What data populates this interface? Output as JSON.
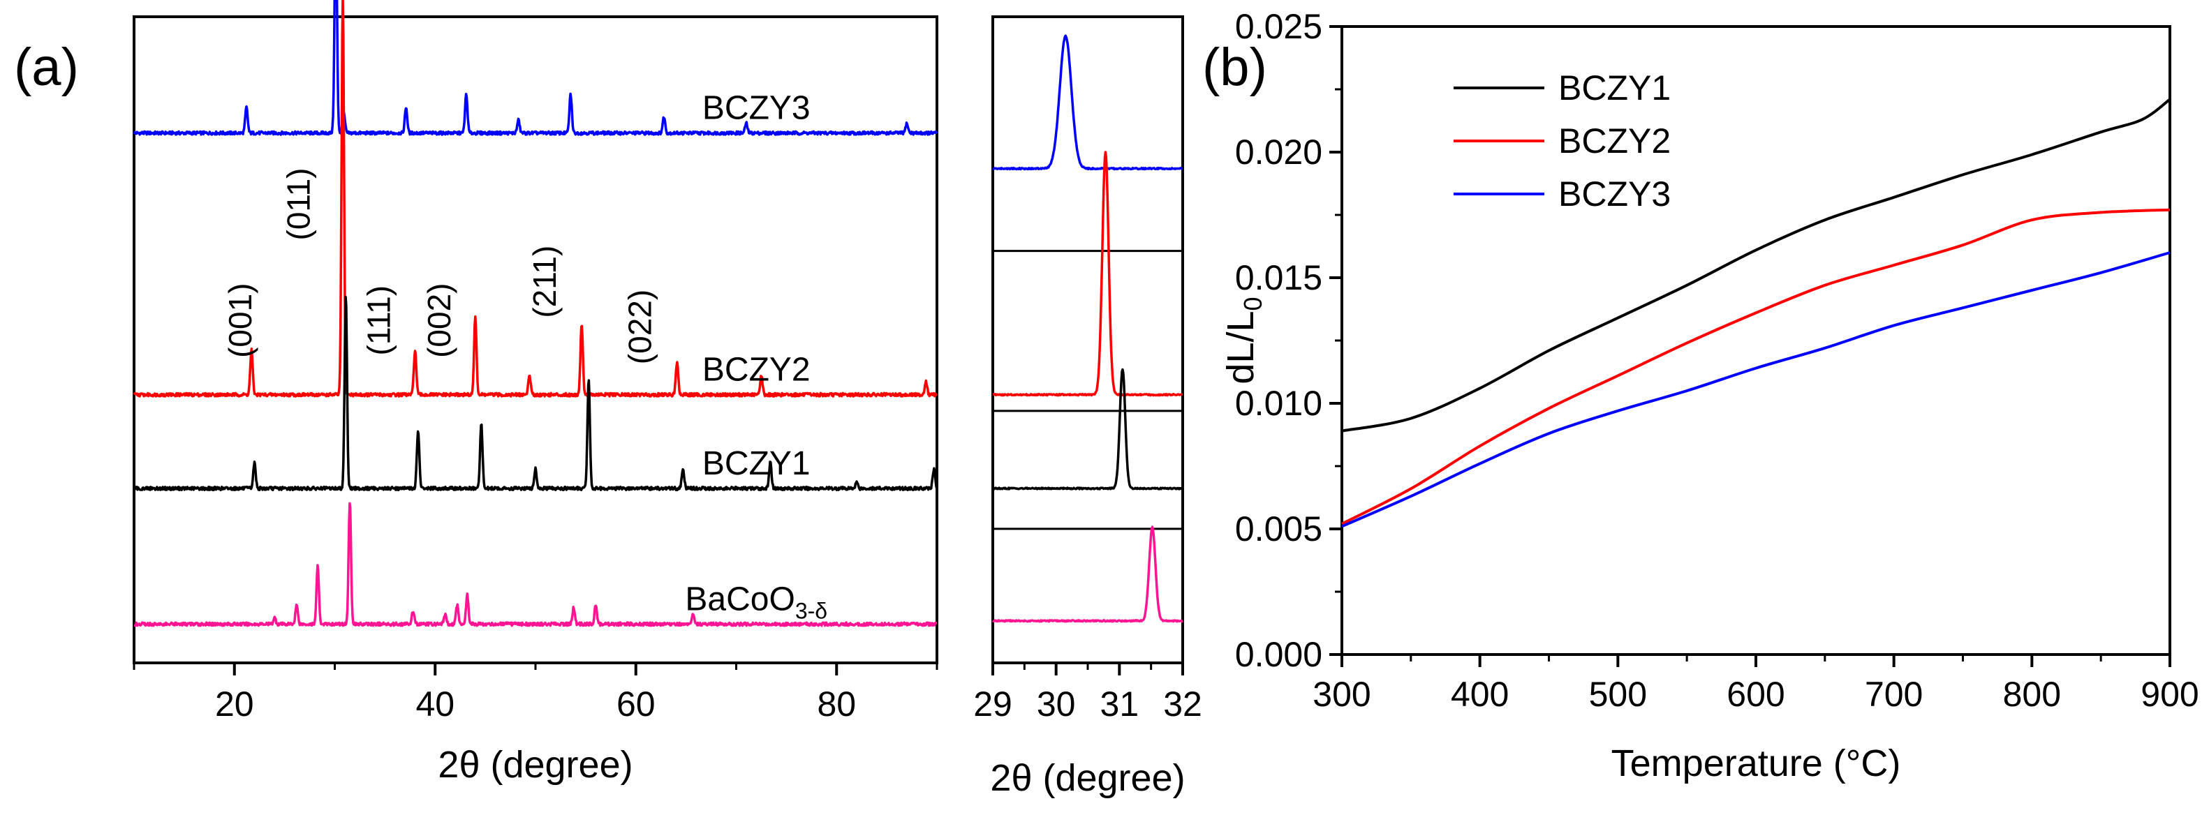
{
  "colors": {
    "BCZY1": "#000000",
    "BCZY2": "#ff0000",
    "BCZY3": "#0000ff",
    "BaCoO3": "#ff1493",
    "axis": "#000000"
  },
  "chart_data": [
    {
      "panel_label": "(a)",
      "type": "line",
      "title": "",
      "xlabel": "2θ (degree)",
      "ylabel": "",
      "xlim": [
        10,
        90
      ],
      "xticks": [
        20,
        40,
        60,
        80
      ],
      "xtick_labels": [
        "20",
        "40",
        "60",
        "80"
      ],
      "yaxis_shown": false,
      "series": [
        {
          "id": "BCZY3",
          "name": "BCZY3",
          "baseline": 0.82,
          "peaks": [
            [
              21.2,
              0.04
            ],
            [
              30.1,
              0.34
            ],
            [
              30.9,
              0.03
            ],
            [
              37.1,
              0.04
            ],
            [
              43.1,
              0.06
            ],
            [
              48.3,
              0.02
            ],
            [
              53.5,
              0.06
            ],
            [
              62.8,
              0.025
            ],
            [
              71.0,
              0.015
            ],
            [
              87.0,
              0.015
            ]
          ]
        },
        {
          "id": "BCZY2",
          "name": "BCZY2",
          "baseline": 0.415,
          "peaks": [
            [
              21.7,
              0.07
            ],
            [
              30.8,
              0.62
            ],
            [
              38.0,
              0.07
            ],
            [
              44.0,
              0.12
            ],
            [
              49.4,
              0.03
            ],
            [
              54.6,
              0.11
            ],
            [
              64.1,
              0.05
            ],
            [
              72.5,
              0.03
            ],
            [
              88.9,
              0.02
            ]
          ]
        },
        {
          "id": "BCZY1",
          "name": "BCZY1",
          "baseline": 0.27,
          "peaks": [
            [
              22.0,
              0.04
            ],
            [
              31.1,
              0.3
            ],
            [
              38.3,
              0.09
            ],
            [
              44.6,
              0.1
            ],
            [
              50.0,
              0.03
            ],
            [
              55.3,
              0.17
            ],
            [
              64.7,
              0.03
            ],
            [
              73.4,
              0.04
            ],
            [
              82.0,
              0.01
            ],
            [
              89.7,
              0.03
            ]
          ]
        },
        {
          "id": "BaCoO3",
          "name": "BaCoO3-δ",
          "baseline": 0.06,
          "peaks": [
            [
              24.0,
              0.01
            ],
            [
              26.2,
              0.03
            ],
            [
              28.3,
              0.09
            ],
            [
              31.5,
              0.19
            ],
            [
              37.8,
              0.02
            ],
            [
              41.0,
              0.015
            ],
            [
              42.2,
              0.03
            ],
            [
              43.2,
              0.045
            ],
            [
              53.8,
              0.025
            ],
            [
              56.0,
              0.03
            ],
            [
              65.7,
              0.015
            ]
          ]
        }
      ],
      "series_labels": [
        {
          "series": "BCZY3",
          "text": "BCZY3",
          "x": 72
        },
        {
          "series": "BCZY2",
          "text": "BCZY2",
          "x": 72
        },
        {
          "series": "BCZY1",
          "text": "BCZY1",
          "x": 72
        },
        {
          "series": "BaCoO3",
          "text": "BaCoO",
          "sub": "3-δ",
          "x": 72
        }
      ],
      "annotations": [
        {
          "text": "(001)",
          "x": 21.7,
          "y": 0.53
        },
        {
          "text": "(011)",
          "x": 27.5,
          "y": 0.71
        },
        {
          "text": "(111)",
          "x": 35.5,
          "y": 0.53
        },
        {
          "text": "(002)",
          "x": 41.5,
          "y": 0.53
        },
        {
          "text": "(211)",
          "x": 52.0,
          "y": 0.59
        },
        {
          "text": "(022)",
          "x": 61.5,
          "y": 0.52
        }
      ]
    },
    {
      "panel_label": "",
      "type": "line",
      "title": "",
      "xlabel": "2θ (degree)",
      "ylabel": "",
      "xlim": [
        29,
        32
      ],
      "xticks": [
        29,
        30,
        31,
        32
      ],
      "xtick_labels": [
        "29",
        "30",
        "31",
        "32"
      ],
      "yaxis_shown": false,
      "series": [
        {
          "id": "BCZY3",
          "name": "BCZY3",
          "baseline": 0.765,
          "peak_x": 30.15,
          "peak_h": 0.205,
          "width": 0.13
        },
        {
          "id": "BCZY2",
          "name": "BCZY2",
          "baseline": 0.415,
          "peak_x": 30.78,
          "peak_h": 0.375,
          "width": 0.07
        },
        {
          "id": "BCZY1",
          "name": "BCZY1",
          "baseline": 0.27,
          "peak_x": 31.05,
          "peak_h": 0.185,
          "width": 0.06
        },
        {
          "id": "BaCoO3",
          "name": "BaCoO3-δ",
          "baseline": 0.065,
          "peak_x": 31.52,
          "peak_h": 0.145,
          "width": 0.07
        }
      ]
    },
    {
      "panel_label": "(b)",
      "type": "line",
      "title": "",
      "xlabel": "Temperature (°C)",
      "ylabel": "dL/L",
      "ylabel_sub": "0",
      "xlim": [
        300,
        900
      ],
      "ylim": [
        0.0,
        0.025
      ],
      "xticks": [
        300,
        400,
        500,
        600,
        700,
        800,
        900
      ],
      "xtick_labels": [
        "300",
        "400",
        "500",
        "600",
        "700",
        "800",
        "900"
      ],
      "yticks": [
        0.0,
        0.005,
        0.01,
        0.015,
        0.02,
        0.025
      ],
      "ytick_labels": [
        "0.000",
        "0.005",
        "0.010",
        "0.015",
        "0.020",
        "0.025"
      ],
      "legend_position": "top-left",
      "series": [
        {
          "id": "BCZY1",
          "name": "BCZY1",
          "x": [
            300,
            350,
            400,
            450,
            500,
            550,
            600,
            650,
            700,
            750,
            800,
            850,
            880,
            900
          ],
          "y": [
            0.0089,
            0.0094,
            0.0106,
            0.0121,
            0.0134,
            0.0147,
            0.0161,
            0.0173,
            0.0182,
            0.0191,
            0.0199,
            0.0208,
            0.0213,
            0.0221
          ]
        },
        {
          "id": "BCZY2",
          "name": "BCZY2",
          "x": [
            300,
            350,
            400,
            450,
            500,
            550,
            600,
            650,
            700,
            750,
            800,
            850,
            900
          ],
          "y": [
            0.0052,
            0.0066,
            0.0083,
            0.0098,
            0.0111,
            0.0124,
            0.0136,
            0.0147,
            0.0155,
            0.0163,
            0.0173,
            0.0176,
            0.0177
          ]
        },
        {
          "id": "BCZY3",
          "name": "BCZY3",
          "x": [
            300,
            350,
            400,
            450,
            500,
            550,
            600,
            650,
            700,
            750,
            800,
            850,
            900
          ],
          "y": [
            0.0051,
            0.0063,
            0.0076,
            0.0088,
            0.0097,
            0.0105,
            0.0114,
            0.0122,
            0.0131,
            0.0138,
            0.0145,
            0.0152,
            0.016
          ]
        }
      ]
    }
  ]
}
